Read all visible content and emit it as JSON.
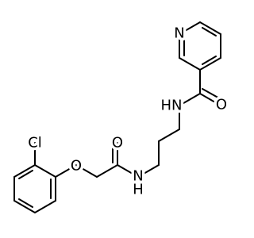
{
  "atoms": [
    "N",
    "O",
    "HN",
    "O",
    "N",
    "H",
    "O",
    "Cl"
  ]
}
